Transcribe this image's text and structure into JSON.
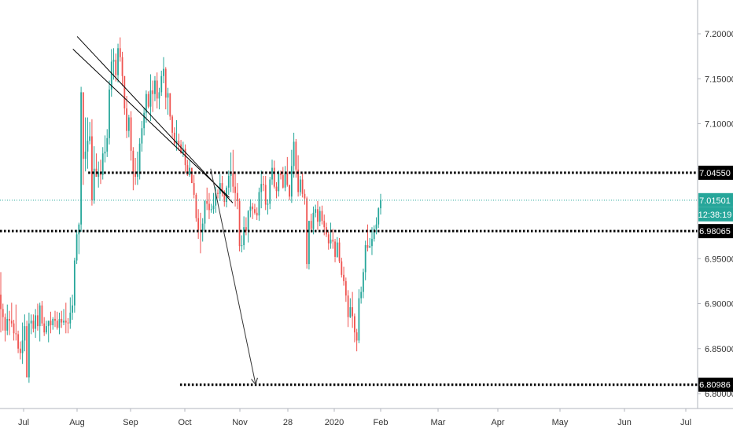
{
  "chart_data": {
    "type": "candlestick",
    "x_axis_labels": [
      "Jul",
      "Aug",
      "Sep",
      "Oct",
      "Nov",
      "28",
      "2020",
      "Feb",
      "Mar",
      "Apr",
      "May",
      "Jun",
      "Jul"
    ],
    "y_tick_labels": [
      "7.20000",
      "7.15000",
      "7.10000",
      "7.05000",
      "6.95000",
      "6.90000",
      "6.85000",
      "6.80000"
    ],
    "ylim": [
      6.795,
      7.23
    ],
    "last_price": 7.01501,
    "last_price_label": "7.01501",
    "countdown_label": "12:38:19",
    "countdown_color": "#26a69a",
    "up_color": "#26a69a",
    "down_color": "#ef5350",
    "horizontal_levels": [
      {
        "label": "7.04550",
        "value": 7.0455,
        "from_date": "Sep 15"
      },
      {
        "label": "6.98065",
        "value": 6.98065,
        "from_date": "Jul"
      },
      {
        "label": "6.80986",
        "value": 6.80986,
        "from_date": "Jan 1"
      }
    ],
    "trendlines": [
      {
        "from": [
          "Sep 2",
          7.197
        ],
        "to": [
          "Mar 3",
          7.012
        ]
      },
      {
        "from": [
          "Aug 28",
          7.183
        ],
        "to": [
          "Feb 28",
          7.018
        ]
      }
    ],
    "projection_arrow": {
      "from": [
        "Feb 6",
        7.05
      ],
      "to": [
        "Mar 30",
        6.81
      ]
    },
    "candles_ohlc": [
      [
        6.91,
        6.935,
        6.868,
        6.894
      ],
      [
        6.894,
        6.9,
        6.87,
        6.885
      ],
      [
        6.885,
        6.889,
        6.858,
        6.87
      ],
      [
        6.87,
        6.899,
        6.865,
        6.883
      ],
      [
        6.883,
        6.892,
        6.865,
        6.881
      ],
      [
        6.881,
        6.901,
        6.874,
        6.878
      ],
      [
        6.878,
        6.882,
        6.859,
        6.867
      ],
      [
        6.867,
        6.899,
        6.859,
        6.866
      ],
      [
        6.866,
        6.87,
        6.845,
        6.85
      ],
      [
        6.85,
        6.858,
        6.838,
        6.845
      ],
      [
        6.845,
        6.879,
        6.833,
        6.859
      ],
      [
        6.859,
        6.888,
        6.847,
        6.875
      ],
      [
        6.875,
        6.881,
        6.818,
        6.818
      ],
      [
        6.818,
        6.89,
        6.812,
        6.878
      ],
      [
        6.878,
        6.888,
        6.866,
        6.881
      ],
      [
        6.881,
        6.888,
        6.868,
        6.872
      ],
      [
        6.872,
        6.894,
        6.862,
        6.887
      ],
      [
        6.887,
        6.9,
        6.87,
        6.875
      ],
      [
        6.875,
        6.901,
        6.858,
        6.898
      ],
      [
        6.898,
        6.903,
        6.875,
        6.878
      ],
      [
        6.878,
        6.885,
        6.864,
        6.868
      ],
      [
        6.868,
        6.881,
        6.866,
        6.875
      ],
      [
        6.875,
        6.881,
        6.857,
        6.881
      ],
      [
        6.881,
        6.891,
        6.867,
        6.876
      ],
      [
        6.876,
        6.885,
        6.871,
        6.883
      ],
      [
        6.883,
        6.892,
        6.874,
        6.881
      ],
      [
        6.881,
        6.891,
        6.871,
        6.873
      ],
      [
        6.873,
        6.89,
        6.866,
        6.883
      ],
      [
        6.883,
        6.892,
        6.873,
        6.879
      ],
      [
        6.879,
        6.894,
        6.876,
        6.881
      ],
      [
        6.881,
        6.901,
        6.867,
        6.879
      ],
      [
        6.879,
        6.884,
        6.867,
        6.878
      ],
      [
        6.878,
        6.907,
        6.872,
        6.89
      ],
      [
        6.89,
        6.91,
        6.882,
        6.898
      ],
      [
        6.898,
        6.951,
        6.89,
        6.948
      ],
      [
        6.948,
        6.982,
        6.944,
        6.977
      ],
      [
        6.977,
        6.99,
        6.955,
        6.988
      ],
      [
        6.988,
        7.141,
        6.98,
        7.135
      ],
      [
        7.135,
        7.135,
        7.032,
        7.061
      ],
      [
        7.061,
        7.107,
        7.047,
        7.069
      ],
      [
        7.069,
        7.107,
        7.05,
        7.081
      ],
      [
        7.081,
        7.102,
        7.077,
        7.086
      ],
      [
        7.086,
        7.105,
        7.009,
        7.015
      ],
      [
        7.015,
        7.075,
        7.011,
        7.05
      ],
      [
        7.05,
        7.067,
        7.041,
        7.041
      ],
      [
        7.041,
        7.058,
        7.029,
        7.046
      ],
      [
        7.046,
        7.06,
        7.033,
        7.043
      ],
      [
        7.043,
        7.074,
        7.038,
        7.067
      ],
      [
        7.067,
        7.087,
        7.057,
        7.069
      ],
      [
        7.069,
        7.094,
        7.063,
        7.084
      ],
      [
        7.084,
        7.148,
        7.077,
        7.138
      ],
      [
        7.138,
        7.183,
        7.13,
        7.169
      ],
      [
        7.169,
        7.184,
        7.149,
        7.171
      ],
      [
        7.171,
        7.178,
        7.147,
        7.154
      ],
      [
        7.154,
        7.189,
        7.146,
        7.184
      ],
      [
        7.184,
        7.196,
        7.169,
        7.174
      ],
      [
        7.174,
        7.18,
        7.142,
        7.153
      ],
      [
        7.153,
        7.153,
        7.11,
        7.117
      ],
      [
        7.117,
        7.131,
        7.084,
        7.092
      ],
      [
        7.092,
        7.11,
        7.085,
        7.107
      ],
      [
        7.107,
        7.114,
        7.059,
        7.07
      ],
      [
        7.07,
        7.074,
        7.026,
        7.045
      ],
      [
        7.045,
        7.062,
        7.032,
        7.041
      ],
      [
        7.041,
        7.069,
        7.032,
        7.047
      ],
      [
        7.047,
        7.084,
        7.038,
        7.078
      ],
      [
        7.078,
        7.103,
        7.069,
        7.095
      ],
      [
        7.095,
        7.118,
        7.087,
        7.112
      ],
      [
        7.112,
        7.137,
        7.101,
        7.133
      ],
      [
        7.133,
        7.136,
        7.117,
        7.119
      ],
      [
        7.119,
        7.155,
        7.103,
        7.137
      ],
      [
        7.137,
        7.148,
        7.113,
        7.133
      ],
      [
        7.133,
        7.153,
        7.125,
        7.148
      ],
      [
        7.148,
        7.157,
        7.117,
        7.128
      ],
      [
        7.128,
        7.14,
        7.116,
        7.135
      ],
      [
        7.135,
        7.159,
        7.131,
        7.153
      ],
      [
        7.153,
        7.174,
        7.145,
        7.161
      ],
      [
        7.161,
        7.163,
        7.116,
        7.129
      ],
      [
        7.129,
        7.14,
        7.11,
        7.134
      ],
      [
        7.134,
        7.134,
        7.104,
        7.108
      ],
      [
        7.108,
        7.11,
        7.084,
        7.09
      ],
      [
        7.09,
        7.096,
        7.075,
        7.078
      ],
      [
        7.078,
        7.104,
        7.07,
        7.081
      ],
      [
        7.081,
        7.089,
        7.07,
        7.077
      ],
      [
        7.077,
        7.082,
        7.067,
        7.067
      ],
      [
        7.067,
        7.08,
        7.063,
        7.072
      ],
      [
        7.072,
        7.077,
        7.045,
        7.054
      ],
      [
        7.054,
        7.06,
        7.042,
        7.043
      ],
      [
        7.043,
        7.059,
        7.041,
        7.051
      ],
      [
        7.051,
        7.051,
        7.034,
        7.034
      ],
      [
        7.034,
        7.043,
        7.017,
        7.021
      ],
      [
        7.021,
        7.023,
        6.991,
        6.995
      ],
      [
        6.995,
        7.005,
        6.972,
        6.982
      ],
      [
        6.982,
        7.001,
        6.956,
        6.981
      ],
      [
        6.981,
        6.995,
        6.969,
        6.989
      ],
      [
        6.989,
        7.015,
        6.981,
        7.014
      ],
      [
        7.014,
        7.029,
        7.004,
        7.011
      ],
      [
        7.011,
        7.023,
        6.994,
        7.004
      ],
      [
        7.004,
        7.011,
        7.001,
        7.005
      ],
      [
        7.005,
        7.023,
        7.0,
        7.009
      ],
      [
        7.009,
        7.03,
        7.001,
        7.023
      ],
      [
        7.023,
        7.027,
        7.017,
        7.022
      ],
      [
        7.022,
        7.044,
        7.014,
        7.034
      ],
      [
        7.034,
        7.042,
        7.019,
        7.024
      ],
      [
        7.024,
        7.026,
        7.008,
        7.013
      ],
      [
        7.013,
        7.031,
        7.007,
        7.029
      ],
      [
        7.029,
        7.048,
        7.021,
        7.042
      ],
      [
        7.042,
        7.068,
        7.024,
        7.045
      ],
      [
        7.045,
        7.071,
        7.023,
        7.03
      ],
      [
        7.03,
        7.045,
        7.008,
        7.023
      ],
      [
        7.023,
        7.034,
        7.005,
        7.014
      ],
      [
        7.014,
        7.017,
        6.958,
        6.964
      ],
      [
        6.964,
        6.976,
        6.957,
        6.965
      ],
      [
        6.965,
        6.997,
        6.96,
        6.985
      ],
      [
        6.985,
        6.996,
        6.976,
        6.981
      ],
      [
        6.981,
        7.004,
        6.968,
        7.003
      ],
      [
        7.003,
        7.016,
        6.996,
        7.008
      ],
      [
        7.008,
        7.012,
        6.994,
        7.005
      ],
      [
        7.005,
        7.011,
        6.999,
        7.001
      ],
      [
        7.001,
        7.007,
        6.993,
        6.998
      ],
      [
        6.998,
        7.029,
        6.992,
        7.024
      ],
      [
        7.024,
        7.048,
        7.006,
        7.033
      ],
      [
        7.033,
        7.042,
        7.025,
        7.032
      ],
      [
        7.032,
        7.042,
        7.004,
        7.01
      ],
      [
        7.01,
        7.016,
        6.999,
        7.011
      ],
      [
        7.011,
        7.041,
        7.005,
        7.038
      ],
      [
        7.038,
        7.06,
        7.032,
        7.051
      ],
      [
        7.051,
        7.059,
        7.028,
        7.03
      ],
      [
        7.03,
        7.035,
        7.017,
        7.025
      ],
      [
        7.025,
        7.048,
        7.019,
        7.045
      ],
      [
        7.045,
        7.048,
        7.038,
        7.043
      ],
      [
        7.043,
        7.052,
        7.028,
        7.029
      ],
      [
        7.029,
        7.053,
        7.025,
        7.045
      ],
      [
        7.045,
        7.063,
        7.03,
        7.032
      ],
      [
        7.032,
        7.032,
        7.015,
        7.019
      ],
      [
        7.019,
        7.071,
        7.012,
        7.053
      ],
      [
        7.053,
        7.09,
        7.04,
        7.08
      ],
      [
        7.08,
        7.083,
        7.04,
        7.049
      ],
      [
        7.049,
        7.065,
        7.019,
        7.024
      ],
      [
        7.024,
        7.042,
        7.02,
        7.038
      ],
      [
        7.038,
        7.045,
        7.018,
        7.022
      ],
      [
        7.022,
        7.027,
        7.01,
        7.017
      ],
      [
        7.017,
        7.019,
        6.939,
        6.944
      ],
      [
        6.944,
        6.992,
        6.938,
        6.992
      ],
      [
        6.992,
        7.0,
        6.979,
        6.983
      ],
      [
        6.983,
        7.008,
        6.977,
        7.001
      ],
      [
        7.001,
        7.01,
        6.996,
        7.005
      ],
      [
        7.005,
        7.014,
        6.982,
        6.991
      ],
      [
        6.991,
        7.008,
        6.986,
        7.003
      ],
      [
        7.003,
        7.009,
        6.988,
        6.992
      ],
      [
        6.992,
        6.999,
        6.976,
        6.985
      ],
      [
        6.985,
        6.99,
        6.974,
        6.977
      ],
      [
        6.977,
        6.98,
        6.96,
        6.967
      ],
      [
        6.967,
        6.99,
        6.961,
        6.971
      ],
      [
        6.971,
        6.983,
        6.961,
        6.969
      ],
      [
        6.969,
        6.972,
        6.946,
        6.952
      ],
      [
        6.952,
        6.974,
        6.951,
        6.968
      ],
      [
        6.968,
        6.973,
        6.945,
        6.947
      ],
      [
        6.947,
        6.951,
        6.929,
        6.932
      ],
      [
        6.932,
        6.941,
        6.92,
        6.925
      ],
      [
        6.925,
        6.929,
        6.902,
        6.909
      ],
      [
        6.909,
        6.915,
        6.874,
        6.885
      ],
      [
        6.885,
        6.906,
        6.884,
        6.896
      ],
      [
        6.896,
        6.913,
        6.873,
        6.886
      ],
      [
        6.886,
        6.889,
        6.857,
        6.868
      ],
      [
        6.868,
        6.872,
        6.847,
        6.859
      ],
      [
        6.859,
        6.916,
        6.856,
        6.906
      ],
      [
        6.906,
        6.919,
        6.9,
        6.913
      ],
      [
        6.913,
        6.939,
        6.906,
        6.935
      ],
      [
        6.935,
        6.97,
        6.926,
        6.965
      ],
      [
        6.965,
        6.988,
        6.958,
        6.962
      ],
      [
        6.962,
        6.973,
        6.962,
        6.964
      ],
      [
        6.964,
        6.985,
        6.954,
        6.972
      ],
      [
        6.972,
        6.987,
        6.969,
        6.983
      ],
      [
        6.983,
        6.996,
        6.977,
        6.988
      ],
      [
        6.988,
        7.007,
        6.984,
        7.006
      ],
      [
        7.006,
        7.022,
        6.999,
        7.015
      ]
    ]
  }
}
